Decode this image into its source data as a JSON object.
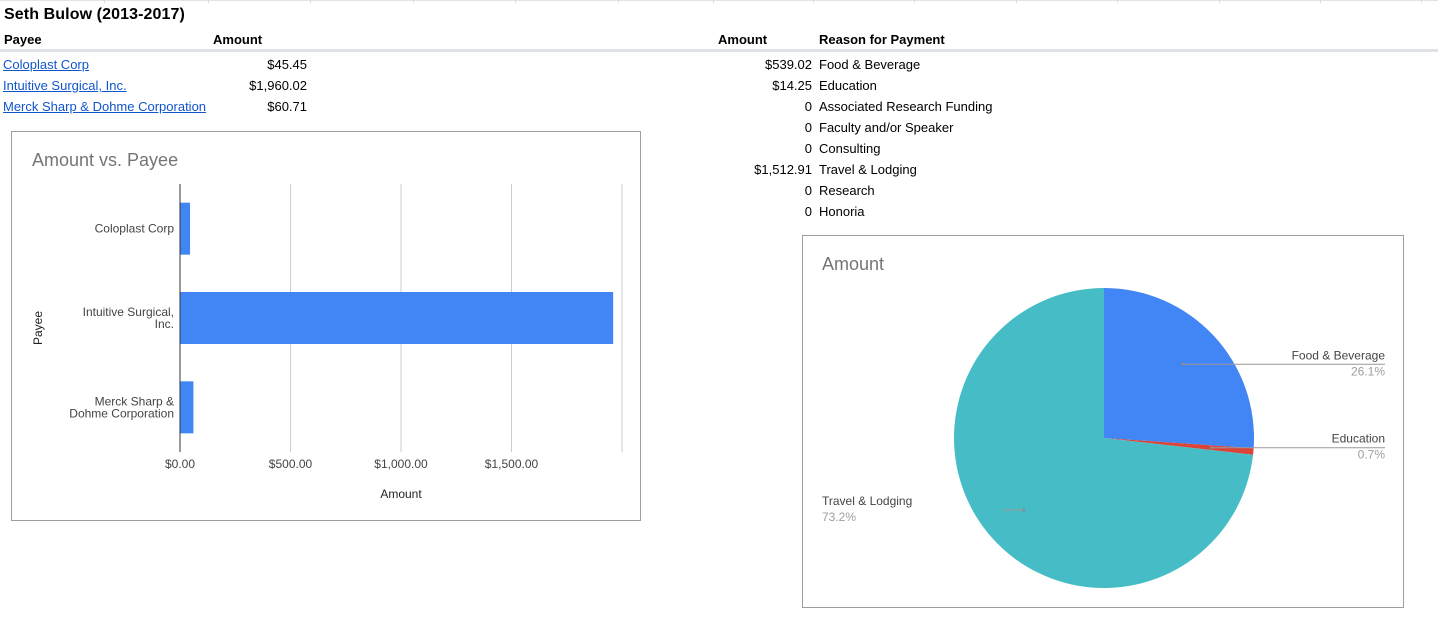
{
  "sheet": {
    "title": "Seth Bulow (2013-2017)",
    "headers": {
      "payee": "Payee",
      "amount": "Amount",
      "amount2": "Amount",
      "reason": "Reason for Payment"
    },
    "payees": [
      {
        "name": "Coloplast Corp",
        "amount": "$45.45"
      },
      {
        "name": "Intuitive Surgical, Inc.",
        "amount": "$1,960.02"
      },
      {
        "name": "Merck Sharp & Dohme Corporation",
        "amount": "$60.71"
      }
    ],
    "reasons": [
      {
        "amount": "$539.02",
        "reason": "Food & Beverage"
      },
      {
        "amount": "$14.25",
        "reason": "Education"
      },
      {
        "amount": "0",
        "reason": "Associated Research Funding"
      },
      {
        "amount": "0",
        "reason": "Faculty and/or Speaker"
      },
      {
        "amount": "0",
        "reason": "Consulting"
      },
      {
        "amount": "$1,512.91",
        "reason": "Travel & Lodging"
      },
      {
        "amount": "0",
        "reason": "Research"
      },
      {
        "amount": "0",
        "reason": "Honoria"
      }
    ]
  },
  "chart_data": [
    {
      "type": "bar",
      "orientation": "horizontal",
      "title": "Amount vs. Payee",
      "xlabel": "Amount",
      "ylabel": "Payee",
      "categories": [
        [
          "Coloplast Corp"
        ],
        [
          "Intuitive Surgical,",
          "Inc."
        ],
        [
          "Merck Sharp &",
          "Dohme Corporation"
        ]
      ],
      "values": [
        45.45,
        1960.02,
        60.71
      ],
      "xlim": [
        0,
        2000
      ],
      "ticks": [
        0,
        500,
        1000,
        1500
      ],
      "tick_labels": [
        "$0.00",
        "$500.00",
        "$1,000.00",
        "$1,500.00"
      ],
      "grid": true,
      "color": "#4285f4"
    },
    {
      "type": "pie",
      "title": "Amount",
      "slices": [
        {
          "label": "Food & Beverage",
          "value": 539.02,
          "pct": "26.1%",
          "color": "#4285f4"
        },
        {
          "label": "Education",
          "value": 14.25,
          "pct": "0.7%",
          "color": "#db4437"
        },
        {
          "label": "Travel & Lodging",
          "value": 1512.91,
          "pct": "73.2%",
          "color": "#46bdc6"
        }
      ]
    }
  ]
}
